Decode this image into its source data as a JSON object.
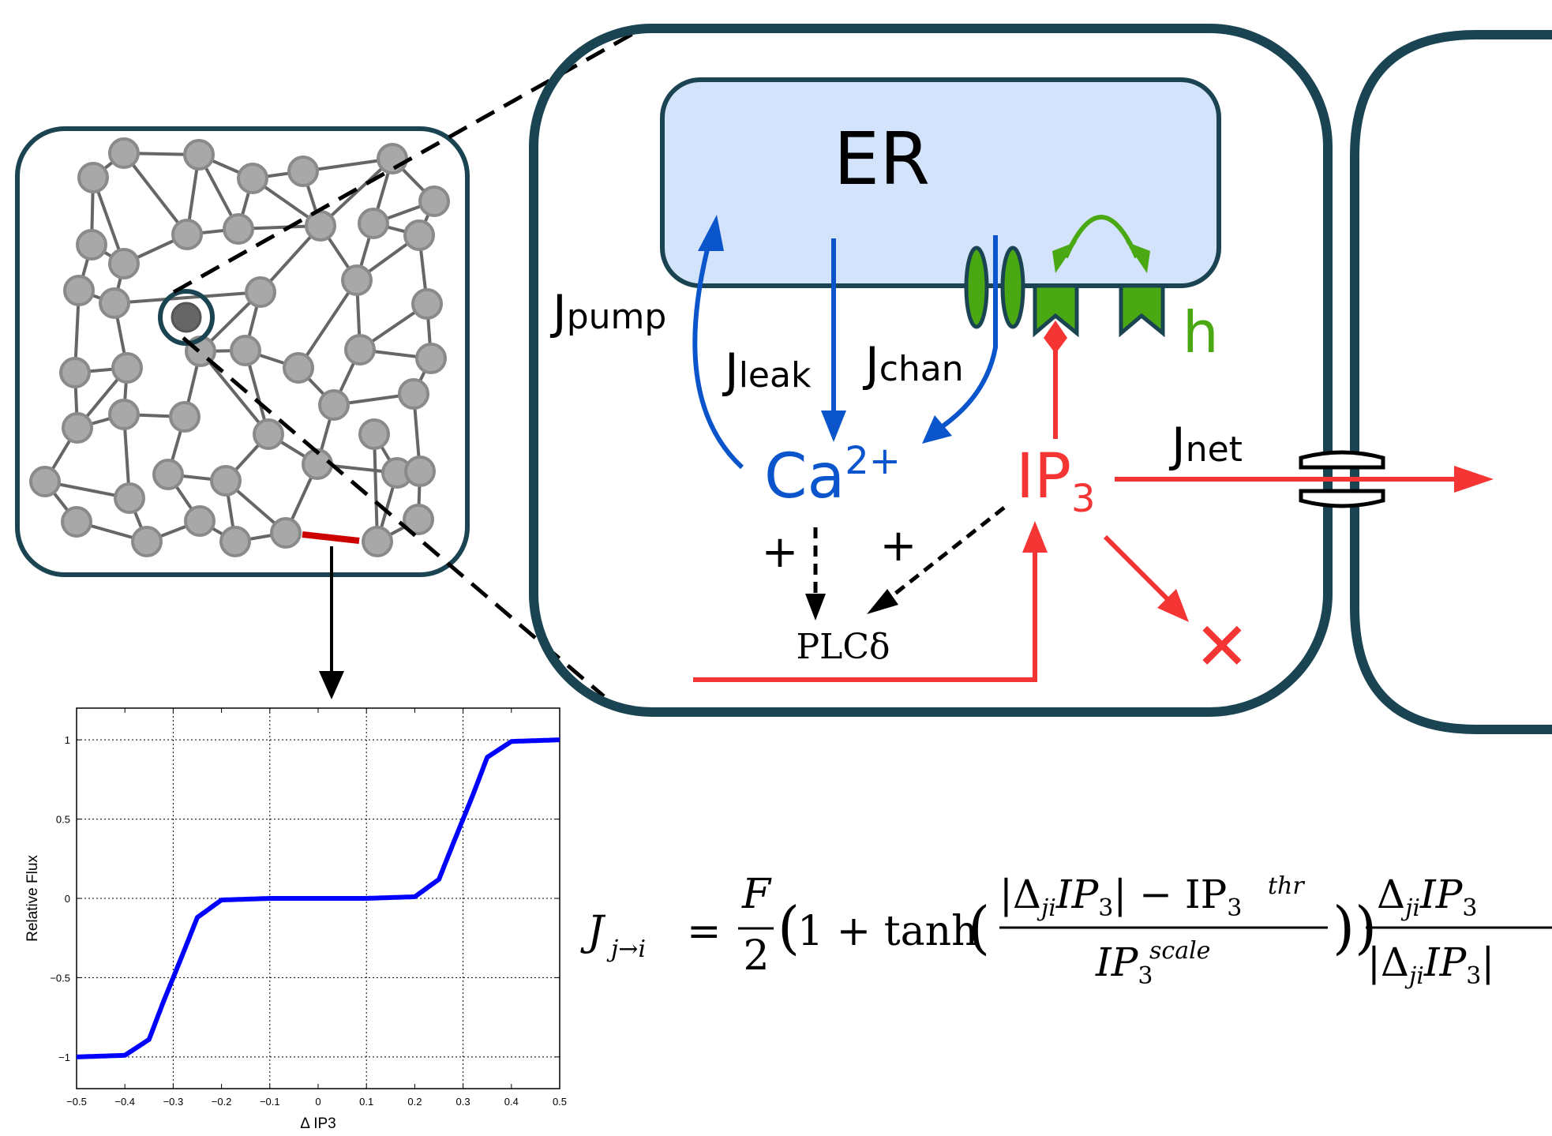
{
  "labels": {
    "er": "ER",
    "j": "J",
    "pump": "pump",
    "leak": "leak",
    "chan": "chan",
    "net": "net",
    "h": "h",
    "ca": "Ca",
    "ca_sup": "2+",
    "ip": "IP",
    "ip_sub": "3",
    "plc": "PLCδ",
    "plus1": "+",
    "plus2": "+",
    "degrade": "✕"
  },
  "equation": {
    "J": "J",
    "sub": "j→i",
    "eq": "=",
    "F": "F",
    "two": "2",
    "one_plus_tanh": "1 + tanh",
    "abs_num": "|Δ",
    "ji": "ji",
    "ip": "IP",
    "three": "3",
    "minus": "| − IP",
    "thr": "thr",
    "scale": "scale"
  },
  "colors": {
    "outline": "#1b4452",
    "er_fill": "#d3e3fb",
    "blue": "#0a55cc",
    "red": "#f53434",
    "green": "#4aa812",
    "node": "#a8a8a8",
    "node_stroke": "#8a8a8a",
    "edge": "#666666",
    "curve": "#0000ff"
  },
  "chart_data": {
    "type": "line",
    "xlabel": "Δ IP3",
    "ylabel": "Relative Flux",
    "xlim": [
      -0.5,
      0.5
    ],
    "ylim": [
      -1.2,
      1.2
    ],
    "xticks": [
      "−0.5",
      "−0.4",
      "−0.3",
      "−0.2",
      "−0.1",
      "0",
      "0.1",
      "0.2",
      "0.3",
      "0.4",
      "0.5"
    ],
    "yticks": [
      "1",
      "0.5",
      "0",
      "−0.5",
      "−1"
    ],
    "grid": true,
    "series": [
      {
        "x": [
          -0.5,
          -0.4,
          -0.35,
          -0.32,
          -0.3,
          -0.28,
          -0.25,
          -0.2,
          -0.1,
          0,
          0.1,
          0.2,
          0.25,
          0.28,
          0.3,
          0.32,
          0.35,
          0.4,
          0.5
        ],
        "y": [
          -1.0,
          -0.99,
          -0.89,
          -0.65,
          -0.5,
          -0.35,
          -0.12,
          -0.01,
          0,
          0,
          0,
          0.01,
          0.12,
          0.35,
          0.5,
          0.65,
          0.89,
          0.99,
          1.0
        ]
      }
    ]
  }
}
